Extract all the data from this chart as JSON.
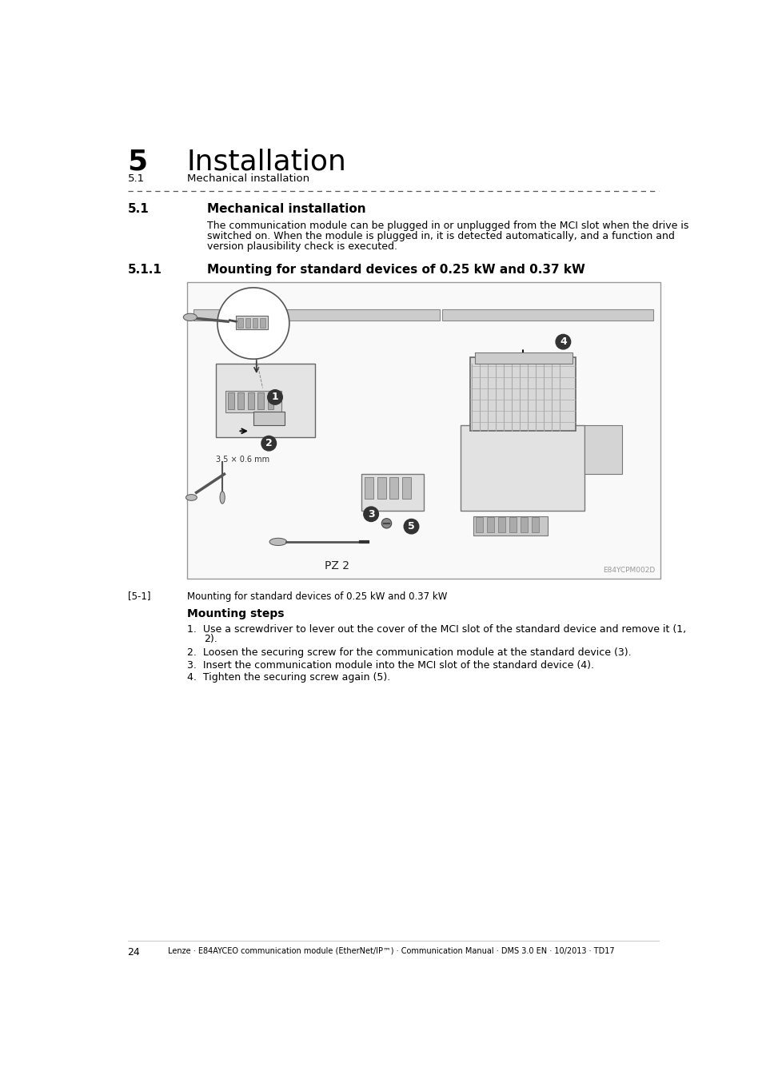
{
  "page_number": "24",
  "footer_text": "Lenze · E84AYCEO communication module (EtherNet/IP™) · Communication Manual · DMS 3.0 EN · 10/2013 · TD17",
  "header_chapter_num": "5",
  "header_chapter_title": "Installation",
  "header_sub_num": "5.1",
  "header_sub_title": "Mechanical installation",
  "section_num": "5.1",
  "section_title": "Mechanical installation",
  "section_body_line1": "The communication module can be plugged in or unplugged from the MCI slot when the drive is",
  "section_body_line2": "switched on. When the module is plugged in, it is detected automatically, and a function and",
  "section_body_line3": "version plausibility check is executed.",
  "subsection_num": "5.1.1",
  "subsection_title": "Mounting for standard devices of 0.25 kW and 0.37 kW",
  "figure_caption_ref": "[5-1]",
  "figure_caption_text": "Mounting for standard devices of 0.25 kW and 0.37 kW",
  "figure_watermark": "E84YCPM002D",
  "mounting_steps_title": "Mounting steps",
  "step1": "Use a screwdriver to lever out the cover of the MCI slot of the standard device and remove it (1,",
  "step1b": "2).",
  "step2": "Loosen the securing screw for the communication module at the standard device (3).",
  "step3": "Insert the communication module into the MCI slot of the standard device (4).",
  "step4": "Tighten the securing screw again (5).",
  "dim_label": "3.5 × 0.6 mm",
  "pz_label": "PZ 2",
  "bg_color": "#ffffff",
  "text_color": "#000000",
  "gray_text": "#888888"
}
